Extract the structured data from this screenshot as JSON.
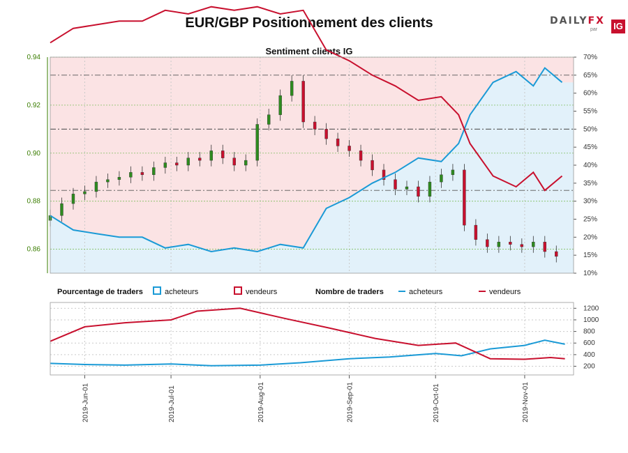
{
  "header": {
    "title": "EUR/GBP Positionnement des clients"
  },
  "logo": {
    "word_a": "DAILY",
    "word_b": "FX",
    "par": "par",
    "ig": "IG"
  },
  "colors": {
    "buyers": "#1a9ad6",
    "sellers": "#c8102e",
    "buyers_area": "#e2f1fa",
    "sellers_area": "#fbe3e4",
    "candle_up": "#2e8b1f",
    "candle_down": "#c8102e"
  },
  "legend": {
    "pct_label": "Pourcentage de traders",
    "buyers": "acheteurs",
    "sellers": "vendeurs",
    "count_label": "Nombre de traders",
    "buyers2": "acheteurs",
    "sellers2": "vendeurs"
  },
  "chart_data": {
    "type": "line",
    "title": "Sentiment clients IG",
    "price_axis": {
      "ylim": [
        0.85,
        0.94
      ],
      "ticks": [
        "0.94",
        "0.92",
        "0.90",
        "0.88",
        "0.86"
      ]
    },
    "pct_axis": {
      "ylim": [
        10,
        70
      ],
      "ticks": [
        "70%",
        "65%",
        "60%",
        "55%",
        "50%",
        "45%",
        "40%",
        "35%",
        "30%",
        "25%",
        "20%",
        "15%",
        "10%"
      ]
    },
    "count_axis": {
      "ylim": [
        50,
        1300
      ],
      "ticks": [
        "1200",
        "1000",
        "800",
        "600",
        "400",
        "200"
      ]
    },
    "x_range": [
      "2019-05-20",
      "2019-11-18"
    ],
    "x_ticks": [
      {
        "date": "2019-06-01",
        "label": "2019-Jun-01"
      },
      {
        "date": "2019-07-01",
        "label": "2019-Jul-01"
      },
      {
        "date": "2019-08-01",
        "label": "2019-Aug-01"
      },
      {
        "date": "2019-09-01",
        "label": "2019-Sep-01"
      },
      {
        "date": "2019-10-01",
        "label": "2019-Oct-01"
      },
      {
        "date": "2019-11-01",
        "label": "2019-Nov-01"
      }
    ],
    "reference_lines_pct": [
      65,
      50,
      33
    ],
    "price_candles_close": [
      [
        "2019-05-20",
        0.874
      ],
      [
        "2019-05-24",
        0.879
      ],
      [
        "2019-05-28",
        0.883
      ],
      [
        "2019-06-01",
        0.884
      ],
      [
        "2019-06-05",
        0.888
      ],
      [
        "2019-06-09",
        0.889
      ],
      [
        "2019-06-13",
        0.89
      ],
      [
        "2019-06-17",
        0.892
      ],
      [
        "2019-06-21",
        0.891
      ],
      [
        "2019-06-25",
        0.894
      ],
      [
        "2019-06-29",
        0.896
      ],
      [
        "2019-07-03",
        0.895
      ],
      [
        "2019-07-07",
        0.898
      ],
      [
        "2019-07-11",
        0.897
      ],
      [
        "2019-07-15",
        0.901
      ],
      [
        "2019-07-19",
        0.898
      ],
      [
        "2019-07-23",
        0.895
      ],
      [
        "2019-07-27",
        0.897
      ],
      [
        "2019-07-31",
        0.912
      ],
      [
        "2019-08-04",
        0.916
      ],
      [
        "2019-08-08",
        0.924
      ],
      [
        "2019-08-12",
        0.93
      ],
      [
        "2019-08-16",
        0.913
      ],
      [
        "2019-08-20",
        0.91
      ],
      [
        "2019-08-24",
        0.906
      ],
      [
        "2019-08-28",
        0.903
      ],
      [
        "2019-09-01",
        0.901
      ],
      [
        "2019-09-05",
        0.897
      ],
      [
        "2019-09-09",
        0.893
      ],
      [
        "2019-09-13",
        0.889
      ],
      [
        "2019-09-17",
        0.885
      ],
      [
        "2019-09-21",
        0.886
      ],
      [
        "2019-09-25",
        0.882
      ],
      [
        "2019-09-29",
        0.888
      ],
      [
        "2019-10-03",
        0.891
      ],
      [
        "2019-10-07",
        0.893
      ],
      [
        "2019-10-11",
        0.87
      ],
      [
        "2019-10-15",
        0.864
      ],
      [
        "2019-10-19",
        0.861
      ],
      [
        "2019-10-23",
        0.863
      ],
      [
        "2019-10-27",
        0.862
      ],
      [
        "2019-10-31",
        0.861
      ],
      [
        "2019-11-04",
        0.863
      ],
      [
        "2019-11-08",
        0.859
      ],
      [
        "2019-11-12",
        0.857
      ]
    ],
    "series_pct": [
      {
        "name": "acheteurs",
        "values": [
          [
            "2019-05-20",
            26
          ],
          [
            "2019-05-28",
            22
          ],
          [
            "2019-06-05",
            21
          ],
          [
            "2019-06-13",
            20
          ],
          [
            "2019-06-21",
            20
          ],
          [
            "2019-06-29",
            17
          ],
          [
            "2019-07-07",
            18
          ],
          [
            "2019-07-15",
            16
          ],
          [
            "2019-07-23",
            17
          ],
          [
            "2019-07-31",
            16
          ],
          [
            "2019-08-08",
            18
          ],
          [
            "2019-08-16",
            17
          ],
          [
            "2019-08-24",
            28
          ],
          [
            "2019-09-01",
            31
          ],
          [
            "2019-09-09",
            35
          ],
          [
            "2019-09-17",
            38
          ],
          [
            "2019-09-25",
            42
          ],
          [
            "2019-10-03",
            41
          ],
          [
            "2019-10-09",
            46
          ],
          [
            "2019-10-13",
            54
          ],
          [
            "2019-10-21",
            63
          ],
          [
            "2019-10-29",
            66
          ],
          [
            "2019-11-04",
            62
          ],
          [
            "2019-11-08",
            67
          ],
          [
            "2019-11-14",
            63
          ]
        ]
      },
      {
        "name": "vendeurs",
        "values": [
          [
            "2019-05-20",
            74
          ],
          [
            "2019-05-28",
            78
          ],
          [
            "2019-06-05",
            79
          ],
          [
            "2019-06-13",
            80
          ],
          [
            "2019-06-21",
            80
          ],
          [
            "2019-06-29",
            83
          ],
          [
            "2019-07-07",
            82
          ],
          [
            "2019-07-15",
            84
          ],
          [
            "2019-07-23",
            83
          ],
          [
            "2019-07-31",
            84
          ],
          [
            "2019-08-08",
            82
          ],
          [
            "2019-08-16",
            83
          ],
          [
            "2019-08-24",
            72
          ],
          [
            "2019-09-01",
            69
          ],
          [
            "2019-09-09",
            65
          ],
          [
            "2019-09-17",
            62
          ],
          [
            "2019-09-25",
            58
          ],
          [
            "2019-10-03",
            59
          ],
          [
            "2019-10-09",
            54
          ],
          [
            "2019-10-13",
            46
          ],
          [
            "2019-10-21",
            37
          ],
          [
            "2019-10-29",
            34
          ],
          [
            "2019-11-04",
            38
          ],
          [
            "2019-11-08",
            33
          ],
          [
            "2019-11-14",
            37
          ]
        ]
      }
    ],
    "series_count": [
      {
        "name": "acheteurs",
        "values": [
          [
            "2019-05-20",
            250
          ],
          [
            "2019-06-01",
            230
          ],
          [
            "2019-06-15",
            220
          ],
          [
            "2019-07-01",
            240
          ],
          [
            "2019-07-15",
            210
          ],
          [
            "2019-08-01",
            220
          ],
          [
            "2019-08-15",
            260
          ],
          [
            "2019-09-01",
            330
          ],
          [
            "2019-09-15",
            360
          ],
          [
            "2019-10-01",
            420
          ],
          [
            "2019-10-10",
            380
          ],
          [
            "2019-10-20",
            500
          ],
          [
            "2019-11-01",
            560
          ],
          [
            "2019-11-08",
            650
          ],
          [
            "2019-11-15",
            580
          ]
        ]
      },
      {
        "name": "vendeurs",
        "values": [
          [
            "2019-05-20",
            630
          ],
          [
            "2019-06-01",
            880
          ],
          [
            "2019-06-15",
            950
          ],
          [
            "2019-07-01",
            1000
          ],
          [
            "2019-07-10",
            1150
          ],
          [
            "2019-07-25",
            1200
          ],
          [
            "2019-08-10",
            1020
          ],
          [
            "2019-08-25",
            860
          ],
          [
            "2019-09-10",
            680
          ],
          [
            "2019-09-25",
            560
          ],
          [
            "2019-10-08",
            600
          ],
          [
            "2019-10-20",
            330
          ],
          [
            "2019-11-01",
            320
          ],
          [
            "2019-11-10",
            350
          ],
          [
            "2019-11-15",
            330
          ]
        ]
      }
    ]
  }
}
